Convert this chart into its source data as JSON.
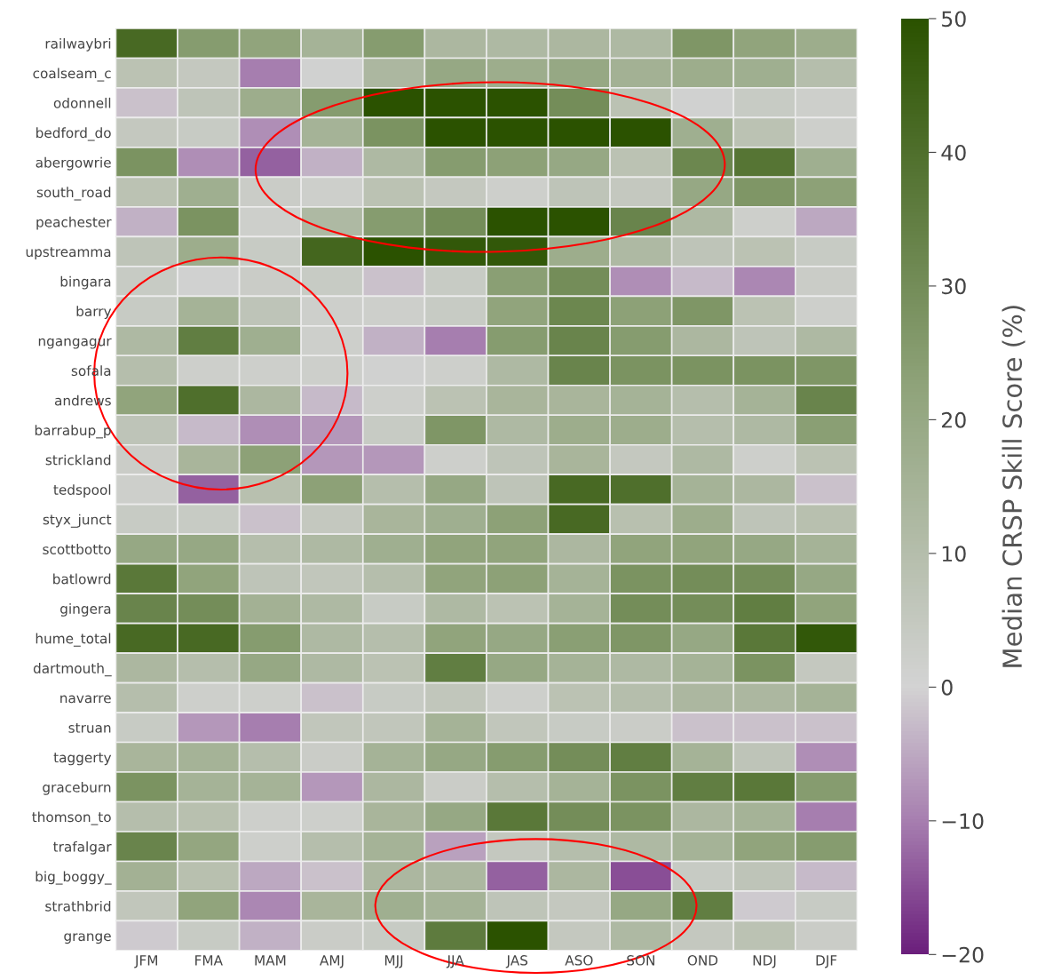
{
  "chart_data": {
    "type": "heatmap",
    "clabel": "Median CRSP Skill Score (%)",
    "categories": [
      "JFM",
      "FMA",
      "MAM",
      "AMJ",
      "MJJ",
      "JJA",
      "JAS",
      "ASO",
      "SON",
      "OND",
      "NDJ",
      "DJF"
    ],
    "y_categories": [
      "railwaybri",
      "coalseam_c",
      "odonnell",
      "bedford_do",
      "abergowrie",
      "south_road",
      "peachester",
      "upstreamma",
      "bingara",
      "barry",
      "ngangagur",
      "sofala",
      "andrews",
      "barrabup_p",
      "strickland",
      "tedspool",
      "styx_junct",
      "scottbotto",
      "batlowrd",
      "gingera",
      "hume_total",
      "dartmouth_",
      "navarre",
      "struan",
      "taggerty",
      "graceburn",
      "thomson_to",
      "trafalgar",
      "big_boggy_",
      "strathbrid",
      "grange"
    ],
    "cells": [
      [
        42,
        25,
        22,
        15,
        25,
        13,
        12,
        13,
        12,
        27,
        22,
        18
      ],
      [
        8,
        5,
        -10,
        1,
        13,
        20,
        18,
        20,
        16,
        18,
        17,
        10
      ],
      [
        -2,
        7,
        18,
        25,
        50,
        50,
        50,
        30,
        8,
        1,
        4,
        2
      ],
      [
        5,
        4,
        -8,
        15,
        28,
        50,
        50,
        50,
        50,
        17,
        8,
        2
      ],
      [
        28,
        -8,
        -13,
        -4,
        12,
        25,
        23,
        20,
        8,
        32,
        38,
        17
      ],
      [
        8,
        17,
        3,
        2,
        8,
        5,
        2,
        7,
        5,
        20,
        27,
        23
      ],
      [
        -4,
        28,
        2,
        12,
        25,
        30,
        50,
        50,
        33,
        12,
        2,
        -5
      ],
      [
        7,
        18,
        4,
        43,
        50,
        48,
        48,
        18,
        12,
        7,
        8,
        4
      ],
      [
        4,
        1,
        3,
        4,
        -2,
        4,
        24,
        30,
        -8,
        -3,
        -9,
        3
      ],
      [
        4,
        15,
        7,
        2,
        2,
        4,
        22,
        32,
        23,
        27,
        8,
        2
      ],
      [
        12,
        35,
        17,
        2,
        -4,
        -10,
        25,
        33,
        25,
        13,
        7,
        12
      ],
      [
        10,
        2,
        2,
        2,
        1,
        2,
        12,
        33,
        28,
        28,
        28,
        27
      ],
      [
        22,
        40,
        13,
        -3,
        2,
        8,
        14,
        14,
        15,
        10,
        15,
        33
      ],
      [
        7,
        -3,
        -8,
        -7,
        4,
        27,
        12,
        18,
        18,
        10,
        12,
        24
      ],
      [
        3,
        14,
        23,
        -7,
        -7,
        2,
        7,
        14,
        5,
        12,
        2,
        8
      ],
      [
        2,
        -13,
        9,
        23,
        10,
        20,
        7,
        42,
        40,
        15,
        13,
        -2
      ],
      [
        4,
        4,
        -2,
        5,
        14,
        17,
        23,
        42,
        9,
        18,
        7,
        9
      ],
      [
        20,
        20,
        10,
        12,
        17,
        22,
        22,
        13,
        22,
        22,
        20,
        15
      ],
      [
        37,
        22,
        7,
        6,
        10,
        22,
        23,
        15,
        28,
        30,
        30,
        20
      ],
      [
        33,
        30,
        16,
        12,
        4,
        12,
        8,
        15,
        30,
        30,
        35,
        22
      ],
      [
        42,
        42,
        25,
        12,
        10,
        22,
        20,
        24,
        27,
        20,
        37,
        48
      ],
      [
        13,
        10,
        20,
        12,
        8,
        35,
        20,
        15,
        12,
        15,
        28,
        5
      ],
      [
        10,
        2,
        2,
        -2,
        4,
        6,
        2,
        8,
        10,
        13,
        13,
        15
      ],
      [
        4,
        -7,
        -10,
        6,
        6,
        15,
        6,
        4,
        3,
        -2,
        -2,
        -2
      ],
      [
        14,
        15,
        10,
        3,
        15,
        20,
        25,
        30,
        35,
        15,
        7,
        -8
      ],
      [
        28,
        15,
        15,
        -7,
        13,
        3,
        10,
        15,
        28,
        35,
        37,
        25
      ],
      [
        10,
        9,
        2,
        2,
        14,
        20,
        37,
        30,
        28,
        13,
        15,
        -10
      ],
      [
        33,
        21,
        2,
        10,
        15,
        -6,
        5,
        10,
        12,
        15,
        22,
        25
      ],
      [
        16,
        9,
        -5,
        -2,
        13,
        13,
        -13,
        13,
        -15,
        4,
        7,
        -3
      ],
      [
        6,
        22,
        -9,
        14,
        17,
        15,
        7,
        5,
        20,
        35,
        -1,
        4
      ],
      [
        -1,
        4,
        -4,
        3,
        4,
        36,
        50,
        5,
        12,
        5,
        8,
        3
      ]
    ],
    "clim": [
      -20,
      50
    ],
    "cticks": [
      {
        "value": -20,
        "label": "−20"
      },
      {
        "value": -10,
        "label": "−10"
      },
      0,
      10,
      20,
      30,
      40,
      50
    ]
  }
}
